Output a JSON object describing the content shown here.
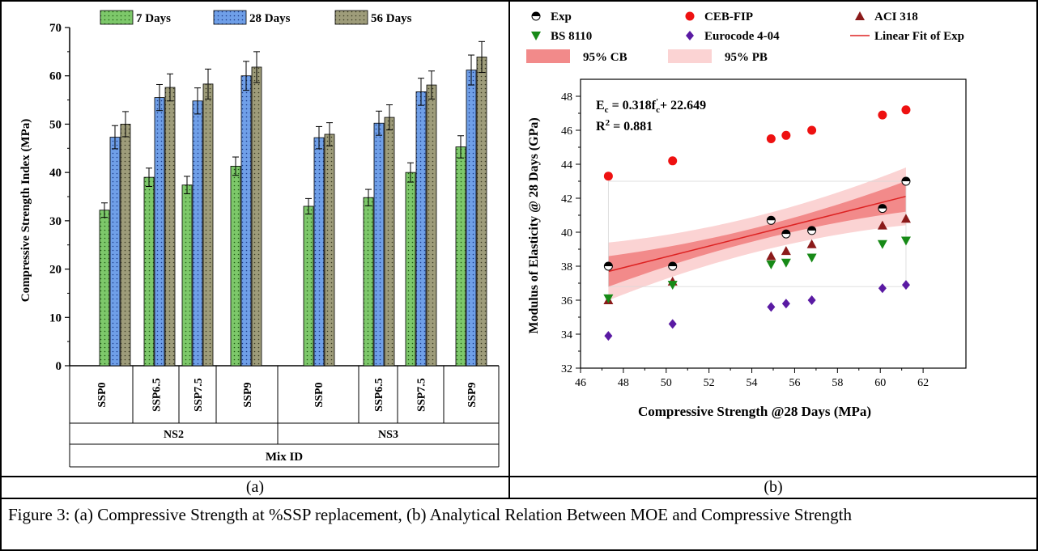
{
  "caption": "Figure 3: (a) Compressive Strength at %SSP replacement, (b) Analytical Relation Between MOE and Compressive Strength",
  "panel_labels": [
    "(a)",
    "(b)"
  ],
  "colors": {
    "d7": "#7dc86a",
    "d28": "#6f9fe8",
    "d56": "#9e9c7a",
    "red": "#ee1111",
    "maroon": "#8b1a1a",
    "green": "#178a17",
    "purple": "#5a1aa3",
    "fitline": "#dd2222",
    "cb": "#f28a8a",
    "pb": "#fbd3d3"
  },
  "chart_data": [
    {
      "type": "bar",
      "ylabel": "Compressive Strength Index (MPa)",
      "xlabel": "Mix ID",
      "ylim": [
        0,
        70
      ],
      "yticks": [
        "0",
        "10",
        "20",
        "30",
        "40",
        "50",
        "60",
        "70"
      ],
      "groups": [
        "NS2",
        "NS3"
      ],
      "categories": [
        "SSP0",
        "SSP6.5",
        "SSP7.5",
        "SSP9",
        "SSP0",
        "SSP6.5",
        "SSP7.5",
        "SSP9"
      ],
      "legend_position": "top",
      "series": [
        {
          "name": "7 Days",
          "values": [
            32.2,
            39.0,
            37.4,
            41.3,
            33.0,
            34.8,
            40.0,
            45.3
          ],
          "errors": [
            1.5,
            1.9,
            1.8,
            1.9,
            1.6,
            1.7,
            2.0,
            2.3
          ]
        },
        {
          "name": "28 Days",
          "values": [
            47.3,
            55.5,
            54.8,
            60.0,
            47.2,
            50.2,
            56.7,
            61.2
          ],
          "errors": [
            2.4,
            2.7,
            2.7,
            3.0,
            2.3,
            2.5,
            2.8,
            3.1
          ]
        },
        {
          "name": "56 Days",
          "values": [
            50.0,
            57.6,
            58.3,
            61.8,
            47.9,
            51.4,
            58.1,
            63.9
          ],
          "errors": [
            2.6,
            2.8,
            3.1,
            3.2,
            2.4,
            2.6,
            2.9,
            3.2
          ]
        }
      ]
    },
    {
      "type": "scatter",
      "xlabel": "Compressive Strength @28 Days (MPa)",
      "ylabel": "Modulus of Elasticity @ 28 Days (GPa)",
      "xlim": [
        46,
        64
      ],
      "ylim": [
        32,
        49
      ],
      "xticks": [
        "46",
        "48",
        "50",
        "52",
        "54",
        "56",
        "58",
        "60",
        "62"
      ],
      "yticks": [
        "32",
        "34",
        "36",
        "38",
        "40",
        "42",
        "44",
        "46",
        "48"
      ],
      "legend_position": "top",
      "equation": {
        "main": "E",
        "sub": "c",
        "mid": " = 0.318f",
        "sup": "'",
        "sub2": "c",
        "tail": "+ 22.649"
      },
      "r2": {
        "base": "R",
        "sup": "2",
        "tail": " = 0.881"
      },
      "fit": {
        "name": "Linear Fit of Exp",
        "slope": 0.318,
        "intercept": 22.649
      },
      "bands": [
        {
          "name": "95% CB"
        },
        {
          "name": "95% PB"
        }
      ],
      "series": [
        {
          "name": "Exp",
          "marker": "half-circle",
          "x": [
            47.3,
            50.3,
            54.9,
            55.6,
            56.8,
            60.1,
            61.2
          ],
          "y": [
            38.0,
            38.0,
            40.7,
            39.9,
            40.1,
            41.4,
            43.0
          ]
        },
        {
          "name": "CEB-FIP",
          "marker": "circle",
          "x": [
            47.3,
            50.3,
            54.9,
            55.6,
            56.8,
            60.1,
            61.2
          ],
          "y": [
            43.3,
            44.2,
            45.5,
            45.7,
            46.0,
            46.9,
            47.2
          ]
        },
        {
          "name": "ACI 318",
          "marker": "triangle-up",
          "x": [
            47.3,
            50.3,
            54.9,
            55.6,
            56.8,
            60.1,
            61.2
          ],
          "y": [
            36.0,
            37.1,
            38.6,
            38.9,
            39.3,
            40.4,
            40.8
          ]
        },
        {
          "name": "BS 8110",
          "marker": "triangle-down",
          "x": [
            47.3,
            50.3,
            54.9,
            55.6,
            56.8,
            60.1,
            61.2
          ],
          "y": [
            36.1,
            36.9,
            38.1,
            38.2,
            38.5,
            39.3,
            39.5
          ]
        },
        {
          "name": "Eurocode  4-04",
          "marker": "diamond",
          "x": [
            47.3,
            50.3,
            54.9,
            55.6,
            56.8,
            60.1,
            61.2
          ],
          "y": [
            33.9,
            34.6,
            35.6,
            35.8,
            36.0,
            36.7,
            36.9
          ]
        }
      ]
    }
  ]
}
